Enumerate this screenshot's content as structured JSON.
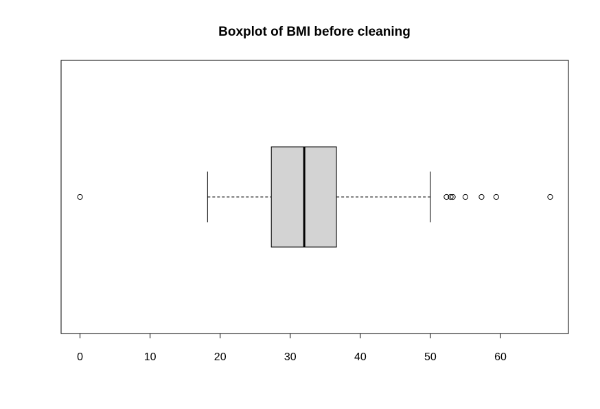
{
  "chart_data": {
    "type": "boxplot",
    "orientation": "horizontal",
    "title": "Boxplot of BMI before cleaning",
    "xlabel": "",
    "ylabel": "",
    "xlim": [
      -2.7,
      69.7
    ],
    "x_ticks": [
      0,
      10,
      20,
      30,
      40,
      50,
      60
    ],
    "x_tick_labels": [
      "0",
      "10",
      "20",
      "30",
      "40",
      "50",
      "60"
    ],
    "grid": false,
    "legend": "none",
    "box": {
      "whisker_low": 18.2,
      "q1": 27.3,
      "median": 32.0,
      "q3": 36.6,
      "whisker_high": 50.0,
      "fill_color": "#d3d3d3"
    },
    "outliers": [
      0,
      52.3,
      52.9,
      53.2,
      55.0,
      57.3,
      59.4,
      67.1
    ]
  }
}
